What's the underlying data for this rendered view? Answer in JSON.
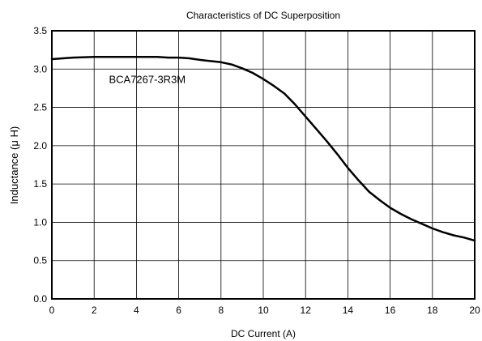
{
  "chart_data": {
    "type": "line",
    "title": "Characteristics of DC Superposition",
    "xlabel": "DC Current (A)",
    "ylabel": "Inductance (μ H)",
    "xlim": [
      0,
      20
    ],
    "ylim": [
      0,
      3.5
    ],
    "xticks": [
      0,
      2,
      4,
      6,
      8,
      10,
      12,
      14,
      16,
      18,
      20
    ],
    "yticks": [
      0.0,
      0.5,
      1.0,
      1.5,
      2.0,
      2.5,
      3.0,
      3.5
    ],
    "xtick_labels": [
      "0",
      "2",
      "4",
      "6",
      "8",
      "10",
      "12",
      "14",
      "16",
      "18",
      "20"
    ],
    "ytick_labels": [
      "0.0",
      "0.5",
      "1.0",
      "1.5",
      "2.0",
      "2.5",
      "3.0",
      "3.5"
    ],
    "grid": true,
    "annotations": [
      {
        "text": "BCA7267-3R3M",
        "x": 2.7,
        "y": 2.82
      }
    ],
    "series": [
      {
        "x": [
          0,
          1,
          2,
          3,
          4,
          5,
          5.5,
          6,
          6.5,
          7,
          8,
          8.5,
          9,
          9.5,
          10,
          10.5,
          11,
          11.5,
          12,
          12.5,
          13,
          13.5,
          14,
          14.5,
          15,
          15.5,
          16,
          16.5,
          17,
          17.5,
          18,
          18.5,
          19,
          19.5,
          20
        ],
        "y": [
          3.13,
          3.15,
          3.16,
          3.16,
          3.16,
          3.16,
          3.15,
          3.15,
          3.14,
          3.12,
          3.09,
          3.06,
          3.01,
          2.95,
          2.87,
          2.78,
          2.68,
          2.54,
          2.38,
          2.22,
          2.06,
          1.89,
          1.71,
          1.55,
          1.4,
          1.29,
          1.19,
          1.11,
          1.04,
          0.98,
          0.92,
          0.87,
          0.83,
          0.8,
          0.76
        ],
        "color": "#000000"
      }
    ]
  }
}
